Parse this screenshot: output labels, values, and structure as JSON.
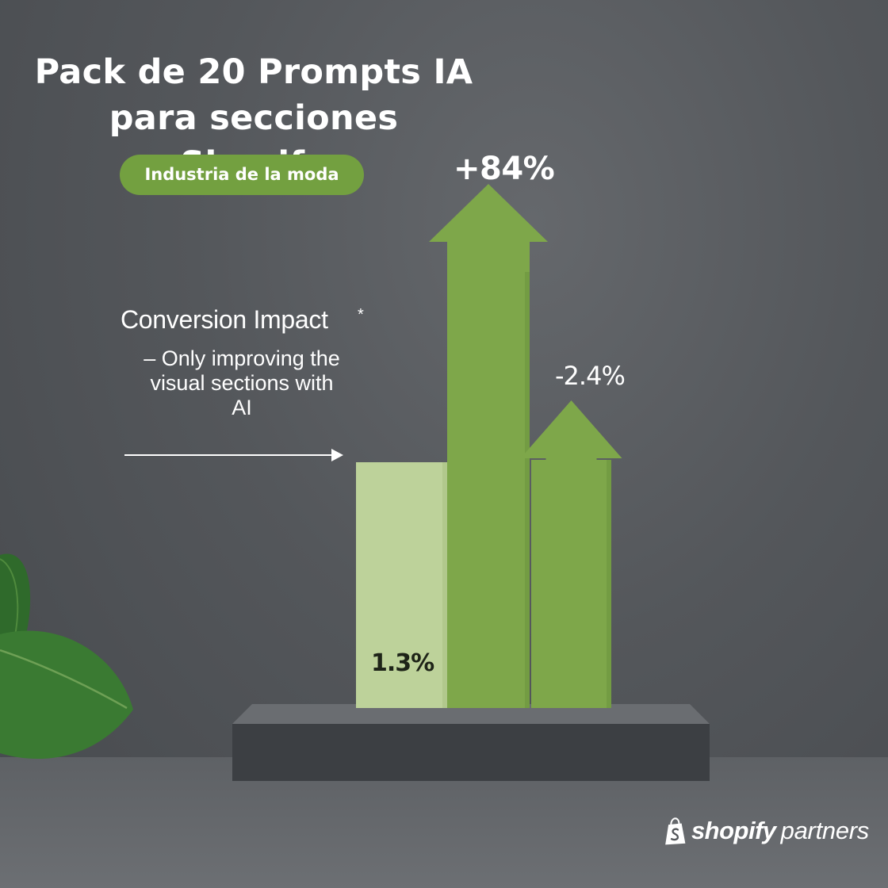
{
  "title_line1": "Pack de 20 Prompts IA",
  "title_line2": "para secciones Shopify",
  "badge": "Industria de la moda",
  "note": {
    "title": "Conversion Impact",
    "star": "*",
    "body": "– Only improving the\nvisual sections with\nAI"
  },
  "brand": {
    "name": "shopify",
    "suffix": "partners"
  },
  "colors": {
    "accent": "#73a040",
    "bar_light": "#bdd29a",
    "bar_green": "#7ea74a",
    "background": "#54575b"
  },
  "chart_data": {
    "type": "bar",
    "categories": [
      "",
      "",
      ""
    ],
    "values": [
      1.3,
      84,
      -2.4
    ],
    "value_labels": [
      "1.3%",
      "+84%",
      "-2.4%"
    ],
    "arrows": [
      false,
      true,
      true
    ],
    "title": "",
    "xlabel": "",
    "ylabel": ""
  }
}
